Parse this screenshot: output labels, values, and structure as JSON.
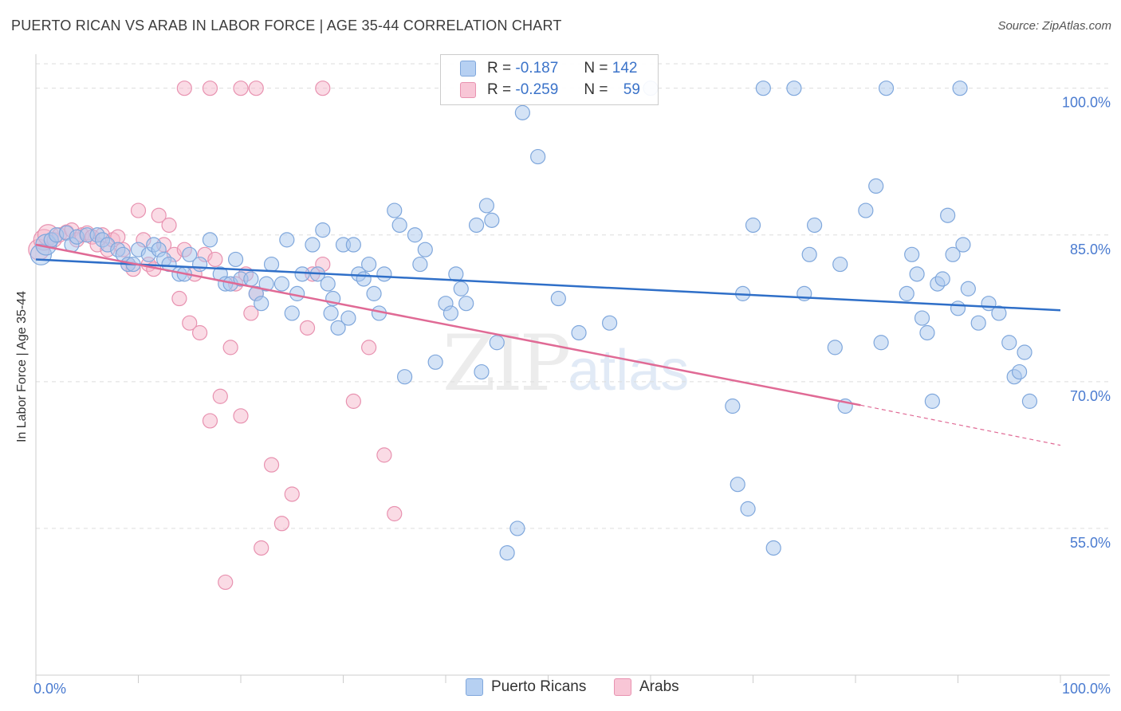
{
  "header": {
    "title": "PUERTO RICAN VS ARAB IN LABOR FORCE | AGE 35-44 CORRELATION CHART",
    "source": "Source: ZipAtlas.com"
  },
  "watermark": {
    "zip": "ZIP",
    "atlas": "atlas"
  },
  "legend": {
    "r_label": "R =",
    "n_label": "N =",
    "series": [
      {
        "r": "-0.187",
        "n": "142"
      },
      {
        "r": "-0.259",
        "n": "59"
      }
    ]
  },
  "bottom_legend": [
    "Puerto Ricans",
    "Arabs"
  ],
  "colors": {
    "blue_fill": "#a9c8ee",
    "blue_stroke": "#7fa7dc",
    "blue_line": "#2f6fc8",
    "pink_fill": "#f6b8cc",
    "pink_stroke": "#e892b0",
    "pink_line": "#e06a95",
    "grid": "#dddddd",
    "tick_text": "#4a7bd0"
  },
  "chart_data": {
    "type": "scatter",
    "title": "PUERTO RICAN VS ARAB IN LABOR FORCE | AGE 35-44 CORRELATION CHART",
    "xlabel": "",
    "ylabel": "In Labor Force | Age 35-44",
    "xlim": [
      0,
      100
    ],
    "ylim": [
      40,
      102.5
    ],
    "x_tick_labels": [
      "0.0%",
      "100.0%"
    ],
    "y_ticks": [
      55,
      70,
      85,
      100
    ],
    "y_tick_labels": [
      "55.0%",
      "70.0%",
      "85.0%",
      "100.0%"
    ],
    "grid": true,
    "legend_placement": "top-center",
    "series": [
      {
        "name": "Puerto Ricans",
        "R": -0.187,
        "N": 142,
        "trend": {
          "x": [
            0,
            100
          ],
          "y": [
            82.5,
            77.3
          ],
          "dashed_from": null
        },
        "points": [
          [
            0.5,
            83
          ],
          [
            1,
            84
          ],
          [
            1.5,
            84.5
          ],
          [
            2,
            85
          ],
          [
            3,
            85.2
          ],
          [
            3.5,
            84
          ],
          [
            4,
            84.8
          ],
          [
            5,
            85
          ],
          [
            6,
            85
          ],
          [
            6.5,
            84.5
          ],
          [
            7,
            84
          ],
          [
            8,
            83.5
          ],
          [
            8.5,
            83
          ],
          [
            9,
            82
          ],
          [
            9.5,
            82
          ],
          [
            10,
            83.5
          ],
          [
            11,
            83
          ],
          [
            11.5,
            84
          ],
          [
            12,
            83.5
          ],
          [
            12.5,
            82.5
          ],
          [
            13,
            82
          ],
          [
            14,
            81
          ],
          [
            14.5,
            81
          ],
          [
            15,
            83
          ],
          [
            16,
            82
          ],
          [
            17,
            84.5
          ],
          [
            18,
            81
          ],
          [
            18.5,
            80
          ],
          [
            19,
            80
          ],
          [
            19.5,
            82.5
          ],
          [
            20,
            80.5
          ],
          [
            21,
            80.5
          ],
          [
            21.5,
            79
          ],
          [
            22,
            78
          ],
          [
            22.5,
            80
          ],
          [
            23,
            82
          ],
          [
            24,
            80
          ],
          [
            24.5,
            84.5
          ],
          [
            25,
            77
          ],
          [
            25.5,
            79
          ],
          [
            26,
            81
          ],
          [
            27,
            84
          ],
          [
            27.5,
            81
          ],
          [
            28,
            85.5
          ],
          [
            28.5,
            80
          ],
          [
            28.8,
            77
          ],
          [
            29,
            78.5
          ],
          [
            29.5,
            75.5
          ],
          [
            30,
            84
          ],
          [
            30.5,
            76.5
          ],
          [
            31,
            84
          ],
          [
            31.5,
            81
          ],
          [
            32,
            80.5
          ],
          [
            32.5,
            82
          ],
          [
            33,
            79
          ],
          [
            33.5,
            77
          ],
          [
            34,
            81
          ],
          [
            35,
            87.5
          ],
          [
            35.5,
            86
          ],
          [
            36,
            70.5
          ],
          [
            37,
            85
          ],
          [
            37.5,
            82
          ],
          [
            38,
            83.5
          ],
          [
            39,
            72
          ],
          [
            40,
            78
          ],
          [
            40.5,
            77
          ],
          [
            41,
            81
          ],
          [
            41.5,
            79.5
          ],
          [
            42,
            78
          ],
          [
            43,
            86
          ],
          [
            43.5,
            71
          ],
          [
            44,
            88
          ],
          [
            44.5,
            86.5
          ],
          [
            45,
            74
          ],
          [
            46,
            52.5
          ],
          [
            47,
            55
          ],
          [
            47.5,
            97.5
          ],
          [
            49,
            93
          ],
          [
            51,
            78.5
          ],
          [
            53,
            75
          ],
          [
            56,
            76
          ],
          [
            60,
            100
          ],
          [
            68,
            67.5
          ],
          [
            68.5,
            59.5
          ],
          [
            69,
            79
          ],
          [
            69.5,
            57
          ],
          [
            70,
            86
          ],
          [
            71,
            100
          ],
          [
            72,
            53
          ],
          [
            75,
            79
          ],
          [
            75.5,
            83
          ],
          [
            76,
            86
          ],
          [
            78,
            73.5
          ],
          [
            78.5,
            82
          ],
          [
            79,
            67.5
          ],
          [
            81,
            87.5
          ],
          [
            82,
            90
          ],
          [
            82.5,
            74
          ],
          [
            83,
            100
          ],
          [
            85,
            79
          ],
          [
            85.5,
            83
          ],
          [
            86,
            81
          ],
          [
            86.5,
            76.5
          ],
          [
            87,
            75
          ],
          [
            87.5,
            68
          ],
          [
            88,
            80
          ],
          [
            88.5,
            80.5
          ],
          [
            89,
            87
          ],
          [
            89.5,
            83
          ],
          [
            90,
            77.5
          ],
          [
            90.5,
            84
          ],
          [
            91,
            79.5
          ],
          [
            92,
            76
          ],
          [
            93,
            78
          ],
          [
            94,
            77
          ],
          [
            95,
            74
          ],
          [
            95.5,
            70.5
          ],
          [
            96,
            71
          ],
          [
            96.5,
            73
          ],
          [
            97,
            68
          ],
          [
            90.2,
            100
          ],
          [
            74,
            100
          ]
        ]
      },
      {
        "name": "Arabs",
        "R": -0.259,
        "N": 59,
        "trend": {
          "x": [
            0,
            80.5,
            100
          ],
          "y": [
            84,
            67.6,
            63.5
          ],
          "dashed_from": 80.5
        },
        "points": [
          [
            0.3,
            83.5
          ],
          [
            0.8,
            84.5
          ],
          [
            1.2,
            85
          ],
          [
            1.8,
            84.5
          ],
          [
            2.3,
            85
          ],
          [
            3,
            85.3
          ],
          [
            3.5,
            85.5
          ],
          [
            4,
            84.5
          ],
          [
            4.5,
            85
          ],
          [
            5,
            85.2
          ],
          [
            5.5,
            84.8
          ],
          [
            6,
            84
          ],
          [
            6.5,
            85
          ],
          [
            7,
            83.5
          ],
          [
            7.5,
            84.5
          ],
          [
            8,
            84.8
          ],
          [
            8.5,
            83.5
          ],
          [
            9,
            82
          ],
          [
            9.5,
            81.5
          ],
          [
            10,
            87.5
          ],
          [
            10.5,
            84.5
          ],
          [
            11,
            82
          ],
          [
            11.5,
            81.5
          ],
          [
            12,
            87
          ],
          [
            12.5,
            84
          ],
          [
            13,
            86
          ],
          [
            13.5,
            83
          ],
          [
            14,
            78.5
          ],
          [
            14.5,
            83.5
          ],
          [
            15,
            76
          ],
          [
            15.5,
            81
          ],
          [
            16,
            75
          ],
          [
            16.5,
            83
          ],
          [
            17,
            66
          ],
          [
            17.5,
            82.5
          ],
          [
            18,
            68.5
          ],
          [
            18.5,
            49.5
          ],
          [
            19,
            73.5
          ],
          [
            19.5,
            80
          ],
          [
            20,
            66.5
          ],
          [
            20.5,
            81
          ],
          [
            21,
            77
          ],
          [
            21.5,
            79
          ],
          [
            22,
            53
          ],
          [
            23,
            61.5
          ],
          [
            24,
            55.5
          ],
          [
            25,
            58.5
          ],
          [
            26.5,
            75.5
          ],
          [
            27,
            81
          ],
          [
            28,
            82
          ],
          [
            31,
            68
          ],
          [
            32.5,
            73.5
          ],
          [
            34,
            62.5
          ],
          [
            35,
            56.5
          ],
          [
            14.5,
            100
          ],
          [
            17,
            100
          ],
          [
            20,
            100
          ],
          [
            21.5,
            100
          ],
          [
            28,
            100
          ]
        ]
      }
    ]
  }
}
